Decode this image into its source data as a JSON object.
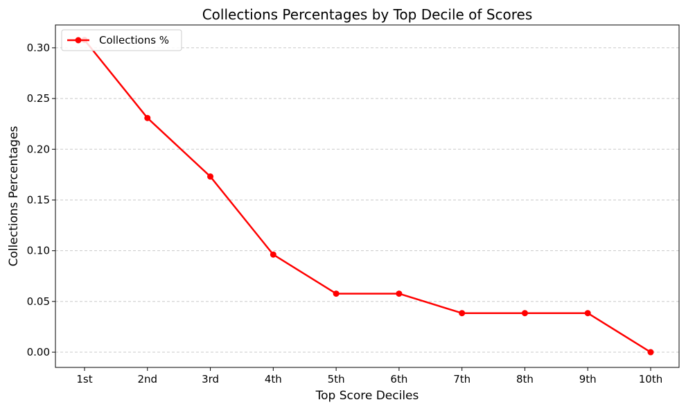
{
  "chart_data": {
    "type": "line",
    "title": "Collections Percentages by Top Decile of Scores",
    "xlabel": "Top Score Deciles",
    "ylabel": "Collections Percentages",
    "categories": [
      "1st",
      "2nd",
      "3rd",
      "4th",
      "5th",
      "6th",
      "7th",
      "8th",
      "9th",
      "10th"
    ],
    "series": [
      {
        "name": "Collections %",
        "values": [
          0.3077,
          0.2308,
          0.1731,
          0.0962,
          0.0577,
          0.0577,
          0.0385,
          0.0385,
          0.0385,
          0.0
        ],
        "color": "#ff0000"
      }
    ],
    "ylim": [
      -0.015,
      0.3225
    ],
    "yticks": [
      0.0,
      0.05,
      0.1,
      0.15,
      0.2,
      0.25,
      0.3
    ],
    "ytick_labels": [
      "0.00",
      "0.05",
      "0.10",
      "0.15",
      "0.20",
      "0.25",
      "0.30"
    ],
    "grid": "y-dashed",
    "legend_position": "upper-left"
  }
}
